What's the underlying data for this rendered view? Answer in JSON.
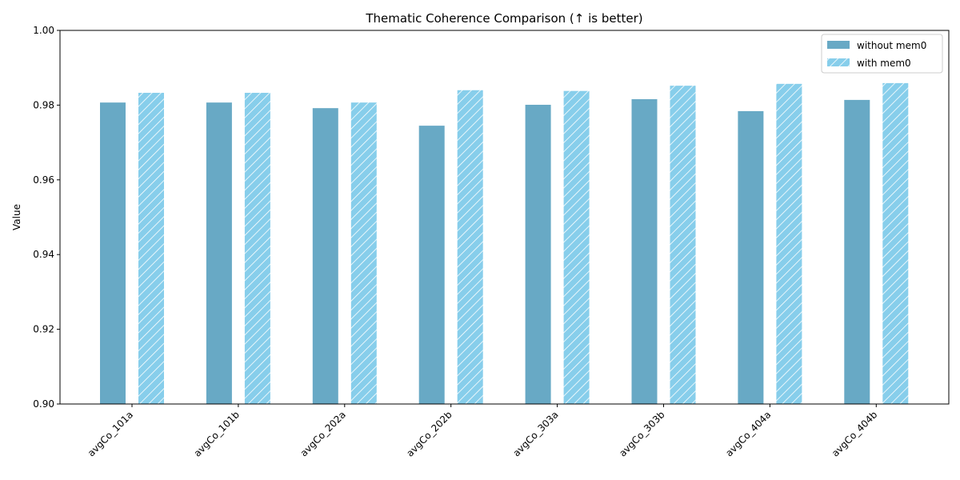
{
  "chart_data": {
    "type": "bar",
    "title": "Thematic Coherence Comparison (↑ is better)",
    "xlabel": "",
    "ylabel": "Value",
    "ylim": [
      0.9,
      1.0
    ],
    "yticks": [
      "0.90",
      "0.92",
      "0.94",
      "0.96",
      "0.98",
      "1.00"
    ],
    "ytick_values": [
      0.9,
      0.92,
      0.94,
      0.96,
      0.98,
      1.0
    ],
    "categories": [
      "avgCo_101a",
      "avgCo_101b",
      "avgCo_202a",
      "avgCo_202b",
      "avgCo_303a",
      "avgCo_303b",
      "avgCo_404a",
      "avgCo_404b"
    ],
    "series": [
      {
        "name": "without mem0",
        "color": "#68a9c5",
        "hatch": false,
        "values": [
          0.9808,
          0.9808,
          0.9793,
          0.9746,
          0.9802,
          0.9817,
          0.9785,
          0.9815
        ]
      },
      {
        "name": "with mem0",
        "color": "#87ceeb",
        "hatch": true,
        "values": [
          0.9834,
          0.9834,
          0.9808,
          0.9841,
          0.9839,
          0.9853,
          0.9858,
          0.986
        ]
      }
    ],
    "grid": false,
    "legend_position": "top-right"
  }
}
